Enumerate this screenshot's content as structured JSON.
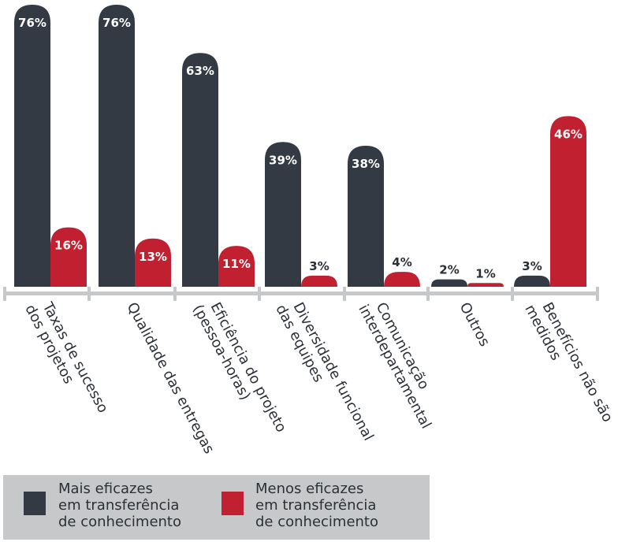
{
  "chart_data": {
    "type": "bar",
    "categories": [
      "Taxas de sucesso\ndos projetos",
      "Qualidade das entregas",
      "Eficiência do projeto\n(pessoa-horas)",
      "Diversidade funcional\ndas equipes",
      "Comunicação\ninterdepartamental",
      "Outros",
      "Benefícios não são\nmedidos"
    ],
    "series": [
      {
        "name": "Mais eficazes em transferência de conhecimento",
        "values": [
          76,
          76,
          63,
          39,
          38,
          2,
          3
        ],
        "labels": [
          "76%",
          "76%",
          "63%",
          "39%",
          "38%",
          "2%",
          "3%"
        ],
        "color": "#333a44"
      },
      {
        "name": "Menos eficazes em transferência de conhecimento",
        "values": [
          16,
          13,
          11,
          3,
          4,
          1,
          46
        ],
        "labels": [
          "16%",
          "13%",
          "11%",
          "3%",
          "4%",
          "1%",
          "46%"
        ],
        "color": "#c0202f"
      }
    ],
    "ylim": [
      0,
      76
    ],
    "grid": false,
    "legend_position": "bottom-left"
  },
  "legend": {
    "dark_label": "Mais eficazes\nem transferência\nde conhecimento",
    "red_label": "Menos eficazes\nem transferência\nde conhecimento"
  },
  "colors": {
    "dark": "#333a44",
    "red": "#c0202f",
    "axis": "#c7c8ca",
    "label_inside": "#ffffff",
    "label_outside": "#2b3036"
  }
}
